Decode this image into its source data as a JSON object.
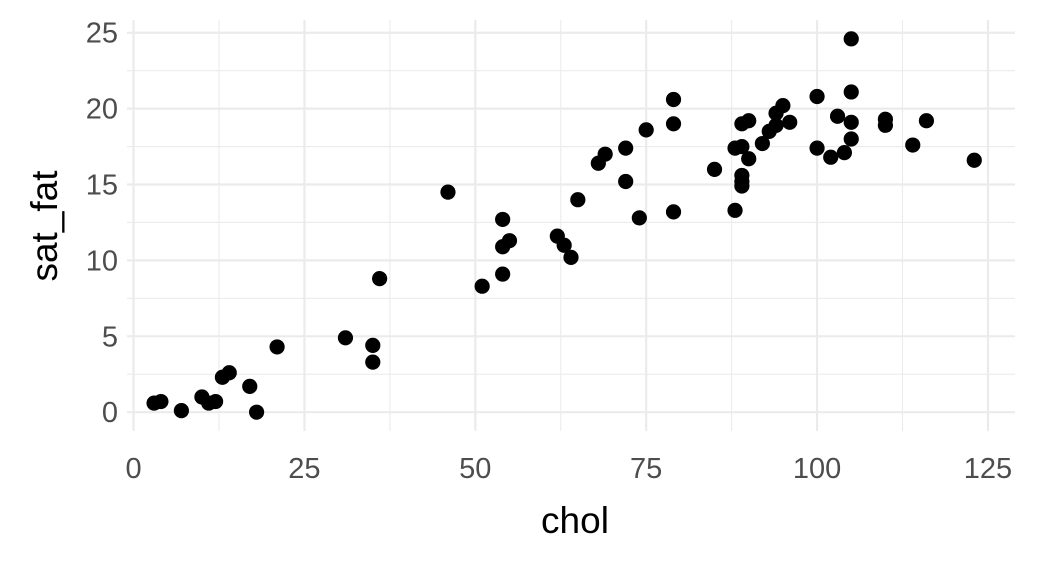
{
  "chart_data": {
    "type": "scatter",
    "title": "",
    "xlabel": "chol",
    "ylabel": "sat_fat",
    "xlim": [
      -0.96,
      128.96
    ],
    "ylim": [
      -1.24,
      25.84
    ],
    "x_ticks": [
      0,
      25,
      50,
      75,
      100,
      125
    ],
    "y_ticks": [
      0,
      5,
      10,
      15,
      20,
      25
    ],
    "x_tick_labels": [
      "0",
      "25",
      "50",
      "75",
      "100",
      "125"
    ],
    "y_tick_labels": [
      "0",
      "5",
      "10",
      "15",
      "20",
      "25"
    ],
    "x_minor": [
      12.5,
      37.5,
      62.5,
      87.5,
      112.5
    ],
    "y_minor": [
      2.5,
      7.5,
      12.5,
      17.5,
      22.5
    ],
    "grid": true,
    "legend": "none",
    "point_color": "#000000",
    "points": [
      {
        "x": 3,
        "y": 0.6
      },
      {
        "x": 4,
        "y": 0.7
      },
      {
        "x": 7,
        "y": 0.1
      },
      {
        "x": 10,
        "y": 1.0
      },
      {
        "x": 11,
        "y": 0.6
      },
      {
        "x": 12,
        "y": 0.7
      },
      {
        "x": 13,
        "y": 2.3
      },
      {
        "x": 14,
        "y": 2.6
      },
      {
        "x": 17,
        "y": 1.7
      },
      {
        "x": 18,
        "y": 0.0
      },
      {
        "x": 21,
        "y": 4.3
      },
      {
        "x": 31,
        "y": 4.9
      },
      {
        "x": 35,
        "y": 4.4
      },
      {
        "x": 35,
        "y": 3.3
      },
      {
        "x": 36,
        "y": 8.8
      },
      {
        "x": 46,
        "y": 14.5
      },
      {
        "x": 51,
        "y": 8.3
      },
      {
        "x": 54,
        "y": 12.7
      },
      {
        "x": 54,
        "y": 10.9
      },
      {
        "x": 55,
        "y": 11.3
      },
      {
        "x": 54,
        "y": 9.1
      },
      {
        "x": 62,
        "y": 11.6
      },
      {
        "x": 63,
        "y": 11.0
      },
      {
        "x": 64,
        "y": 10.2
      },
      {
        "x": 65,
        "y": 14.0
      },
      {
        "x": 68,
        "y": 16.4
      },
      {
        "x": 69,
        "y": 17.0
      },
      {
        "x": 72,
        "y": 17.4
      },
      {
        "x": 72,
        "y": 15.2
      },
      {
        "x": 74,
        "y": 12.8
      },
      {
        "x": 75,
        "y": 18.6
      },
      {
        "x": 79,
        "y": 20.6
      },
      {
        "x": 79,
        "y": 19.0
      },
      {
        "x": 79,
        "y": 13.2
      },
      {
        "x": 85,
        "y": 16.0
      },
      {
        "x": 88,
        "y": 17.4
      },
      {
        "x": 88,
        "y": 13.3
      },
      {
        "x": 89,
        "y": 19.0
      },
      {
        "x": 89,
        "y": 17.5
      },
      {
        "x": 89,
        "y": 15.6
      },
      {
        "x": 89,
        "y": 15.2
      },
      {
        "x": 89,
        "y": 14.9
      },
      {
        "x": 90,
        "y": 19.2
      },
      {
        "x": 90,
        "y": 16.7
      },
      {
        "x": 92,
        "y": 17.7
      },
      {
        "x": 93,
        "y": 18.5
      },
      {
        "x": 94,
        "y": 19.7
      },
      {
        "x": 94,
        "y": 18.9
      },
      {
        "x": 95,
        "y": 20.2
      },
      {
        "x": 96,
        "y": 19.1
      },
      {
        "x": 100,
        "y": 20.8
      },
      {
        "x": 100,
        "y": 17.4
      },
      {
        "x": 102,
        "y": 16.8
      },
      {
        "x": 103,
        "y": 19.5
      },
      {
        "x": 104,
        "y": 17.1
      },
      {
        "x": 105,
        "y": 24.6
      },
      {
        "x": 105,
        "y": 21.1
      },
      {
        "x": 105,
        "y": 19.1
      },
      {
        "x": 105,
        "y": 18.0
      },
      {
        "x": 110,
        "y": 19.3
      },
      {
        "x": 110,
        "y": 18.9
      },
      {
        "x": 114,
        "y": 17.6
      },
      {
        "x": 116,
        "y": 19.2
      },
      {
        "x": 123,
        "y": 16.6
      }
    ]
  }
}
